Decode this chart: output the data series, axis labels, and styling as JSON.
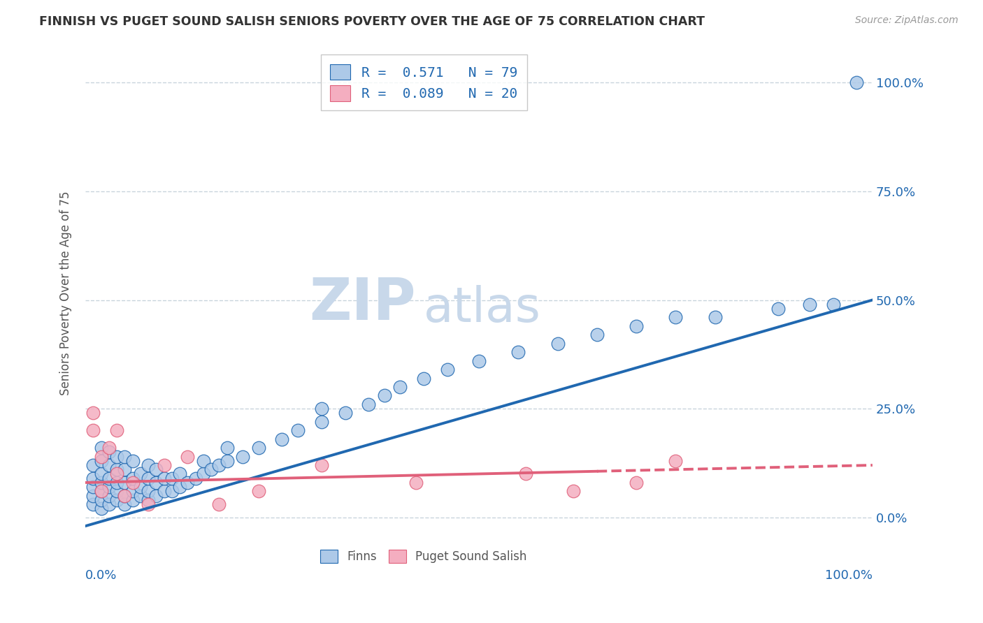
{
  "title": "FINNISH VS PUGET SOUND SALISH SENIORS POVERTY OVER THE AGE OF 75 CORRELATION CHART",
  "source": "Source: ZipAtlas.com",
  "ylabel": "Seniors Poverty Over the Age of 75",
  "xlim": [
    0,
    100
  ],
  "ylim": [
    -5,
    108
  ],
  "y_tick_values": [
    0,
    25,
    50,
    75,
    100
  ],
  "R_finns": 0.571,
  "N_finns": 79,
  "R_salish": 0.089,
  "N_salish": 20,
  "finns_color": "#adc9e8",
  "finns_line_color": "#2068b0",
  "salish_color": "#f4aec0",
  "salish_line_color": "#e0607a",
  "watermark_zip_color": "#c8d8ea",
  "watermark_atlas_color": "#c8d8ea",
  "background_color": "#ffffff",
  "grid_color": "#c8d4dc",
  "finns_line_y0": -2,
  "finns_line_y1": 50,
  "salish_line_y0": 8,
  "salish_line_y1": 12,
  "salish_dash_start_x": 65,
  "finns_x": [
    1,
    1,
    1,
    1,
    1,
    2,
    2,
    2,
    2,
    2,
    2,
    2,
    3,
    3,
    3,
    3,
    3,
    3,
    4,
    4,
    4,
    4,
    4,
    5,
    5,
    5,
    5,
    5,
    6,
    6,
    6,
    6,
    7,
    7,
    7,
    8,
    8,
    8,
    8,
    9,
    9,
    9,
    10,
    10,
    11,
    11,
    12,
    12,
    13,
    14,
    15,
    15,
    16,
    17,
    18,
    18,
    20,
    22,
    25,
    27,
    30,
    30,
    33,
    36,
    38,
    40,
    43,
    46,
    50,
    55,
    60,
    65,
    70,
    75,
    80,
    88,
    92,
    95,
    98
  ],
  "finns_y": [
    3,
    5,
    7,
    9,
    12,
    2,
    4,
    6,
    8,
    10,
    13,
    16,
    3,
    5,
    7,
    9,
    12,
    15,
    4,
    6,
    8,
    11,
    14,
    3,
    5,
    8,
    11,
    14,
    4,
    6,
    9,
    13,
    5,
    7,
    10,
    4,
    6,
    9,
    12,
    5,
    8,
    11,
    6,
    9,
    6,
    9,
    7,
    10,
    8,
    9,
    10,
    13,
    11,
    12,
    13,
    16,
    14,
    16,
    18,
    20,
    22,
    25,
    24,
    26,
    28,
    30,
    32,
    34,
    36,
    38,
    40,
    42,
    44,
    46,
    46,
    48,
    49,
    49,
    100
  ],
  "salish_x": [
    1,
    1,
    2,
    3,
    4,
    5,
    6,
    8,
    10,
    13,
    17,
    22,
    30,
    42,
    56,
    62,
    70,
    75,
    2,
    4
  ],
  "salish_y": [
    20,
    24,
    14,
    16,
    20,
    5,
    8,
    3,
    12,
    14,
    3,
    6,
    12,
    8,
    10,
    6,
    8,
    13,
    6,
    10
  ]
}
